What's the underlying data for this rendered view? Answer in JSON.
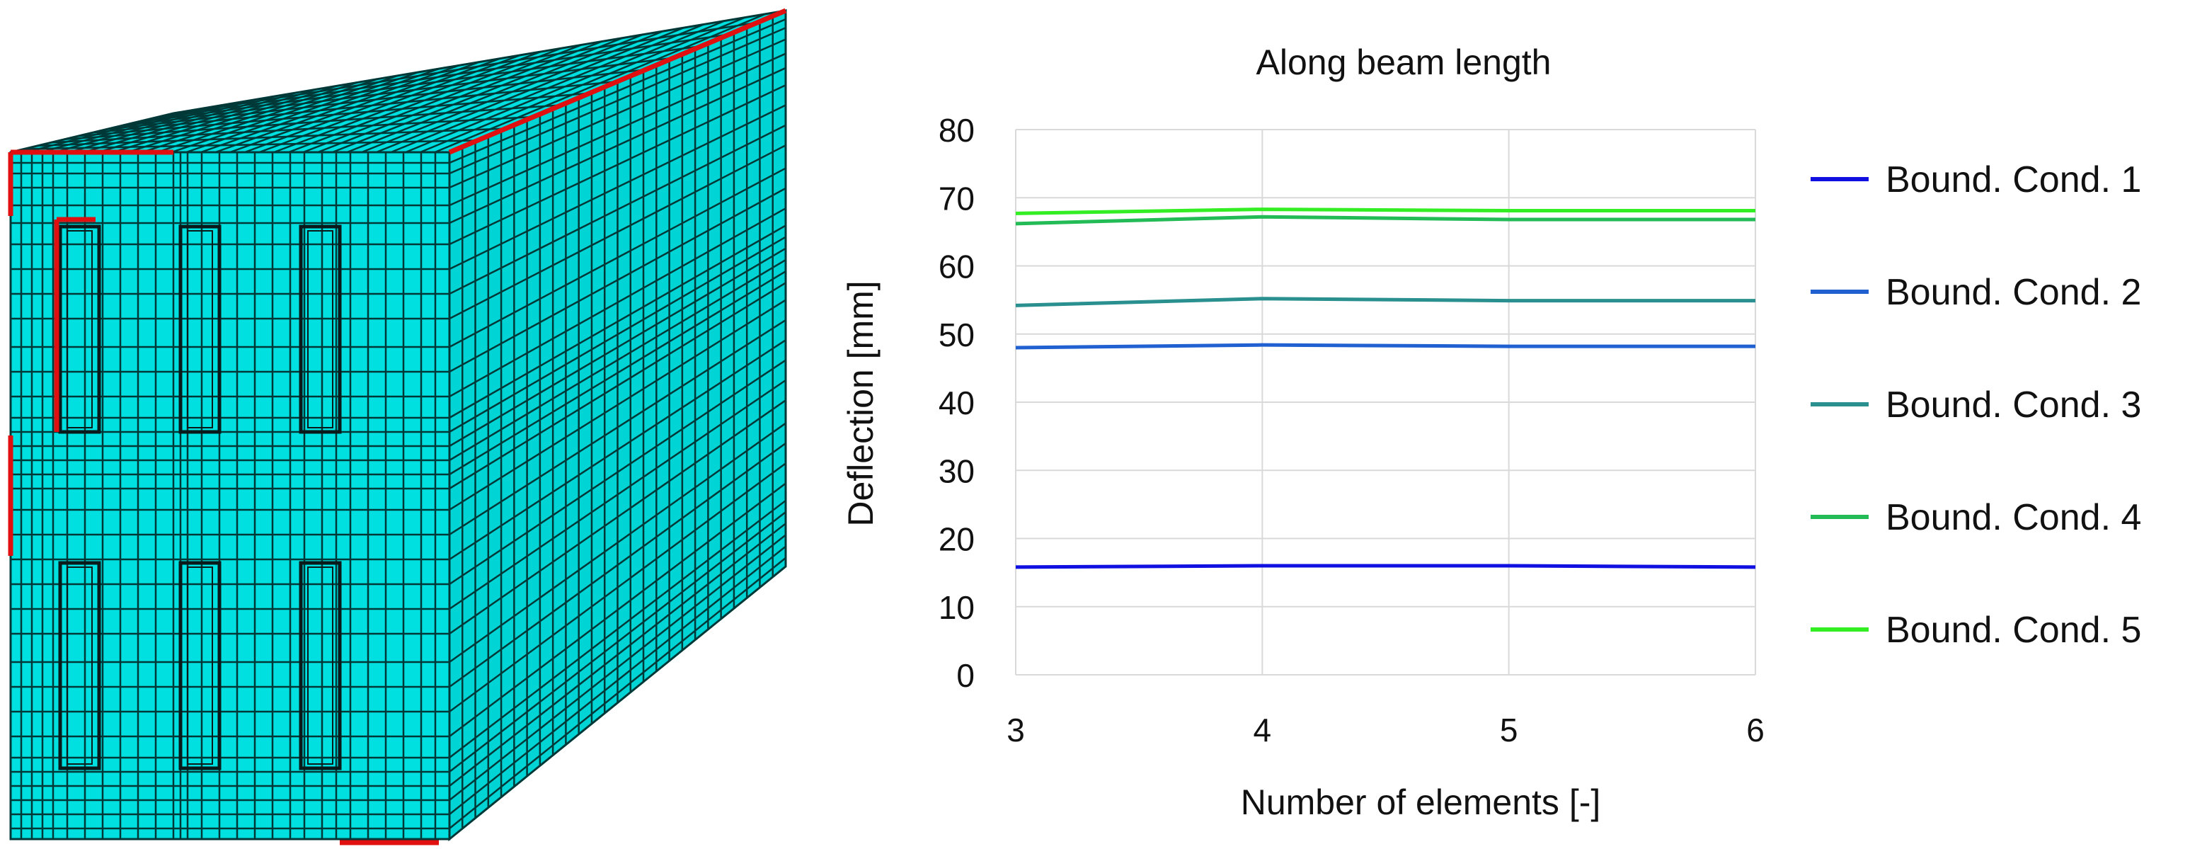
{
  "chart_data": {
    "type": "line",
    "title": "Along beam length",
    "xlabel": "Number of elements [-]",
    "ylabel": "Deflection [mm]",
    "x": [
      3,
      4,
      5,
      6
    ],
    "xlim": [
      3,
      6
    ],
    "ylim": [
      0,
      80
    ],
    "xticks": [
      "3",
      "4",
      "5",
      "6"
    ],
    "yticks": [
      "0",
      "10",
      "20",
      "30",
      "40",
      "50",
      "60",
      "70",
      "80"
    ],
    "grid": true,
    "legend_position": "right",
    "series": [
      {
        "name": "Bound. Cond. 1",
        "color": "#1010e0",
        "values": [
          15.8,
          16.0,
          16.0,
          15.8
        ]
      },
      {
        "name": "Bound. Cond. 2",
        "color": "#2060d0",
        "values": [
          48.0,
          48.4,
          48.2,
          48.2
        ]
      },
      {
        "name": "Bound. Cond. 3",
        "color": "#2a8f8f",
        "values": [
          54.2,
          55.2,
          54.9,
          54.9
        ]
      },
      {
        "name": "Bound. Cond. 4",
        "color": "#22bb55",
        "values": [
          66.2,
          67.2,
          66.8,
          66.8
        ]
      },
      {
        "name": "Bound. Cond. 5",
        "color": "#33ee22",
        "values": [
          67.7,
          68.3,
          68.1,
          68.1
        ]
      }
    ]
  },
  "figure": {
    "mesh_color": "#00e0e0",
    "mesh_line_color": "#003838",
    "constraint_color": "#e01010"
  }
}
